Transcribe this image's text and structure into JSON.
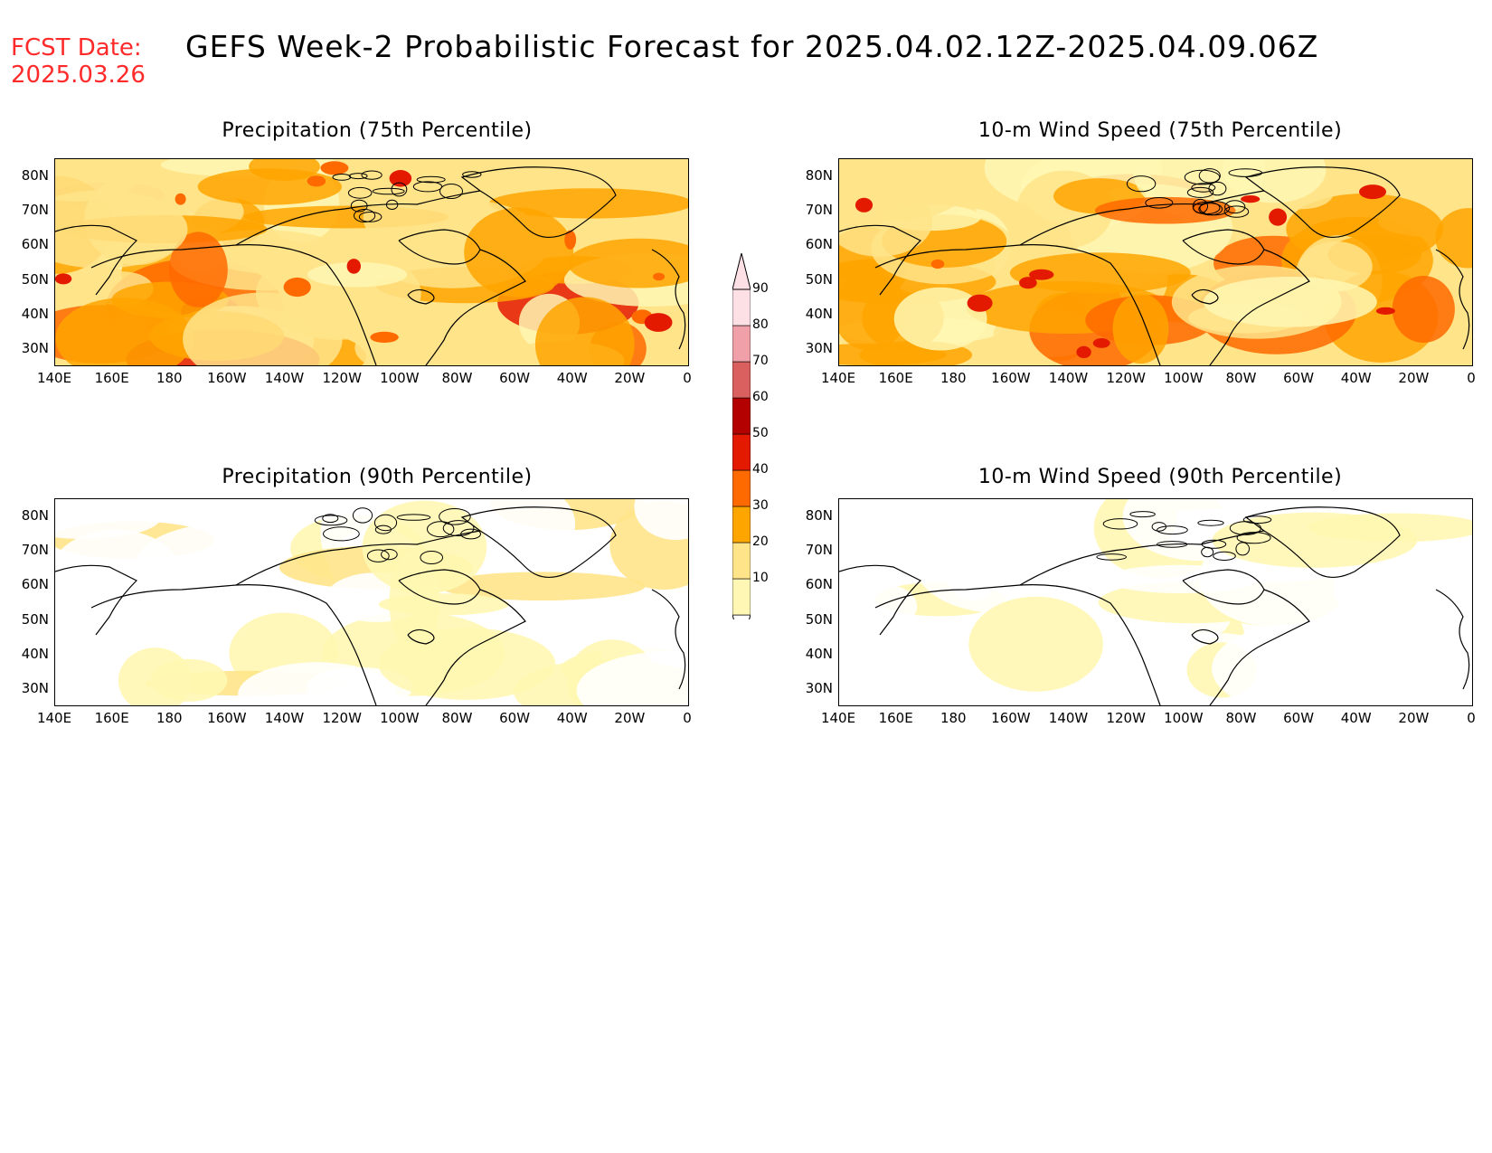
{
  "header": {
    "fcst_label": "FCST Date:",
    "fcst_date": "2025.03.26",
    "title": "GEFS Week-2 Probabilistic Forecast for 2025.04.02.12Z-2025.04.09.06Z"
  },
  "panels": [
    {
      "id": "precip75",
      "title": "Precipitation (75th Percentile)",
      "intensity": 0.75
    },
    {
      "id": "wind75",
      "title": "10-m Wind Speed (75th Percentile)",
      "intensity": 0.7
    },
    {
      "id": "precip90",
      "title": "Precipitation (90th Percentile)",
      "intensity": 0.25
    },
    {
      "id": "wind90",
      "title": "10-m Wind Speed (90th Percentile)",
      "intensity": 0.2
    }
  ],
  "axes": {
    "lat_labels": [
      "80N",
      "70N",
      "60N",
      "50N",
      "40N",
      "30N"
    ],
    "lon_labels": [
      "140E",
      "160E",
      "180",
      "160W",
      "140W",
      "120W",
      "100W",
      "80W",
      "60W",
      "40W",
      "20W",
      "0"
    ]
  },
  "colorbar": {
    "levels": [
      "10",
      "20",
      "30",
      "40",
      "50",
      "60",
      "70",
      "80",
      "90"
    ],
    "colors": [
      "#fff7b3",
      "#ffe48a",
      "#ffa500",
      "#ff6a00",
      "#e41a00",
      "#b30000",
      "#d9605f",
      "#f0a0a8",
      "#fde0e6"
    ]
  }
}
